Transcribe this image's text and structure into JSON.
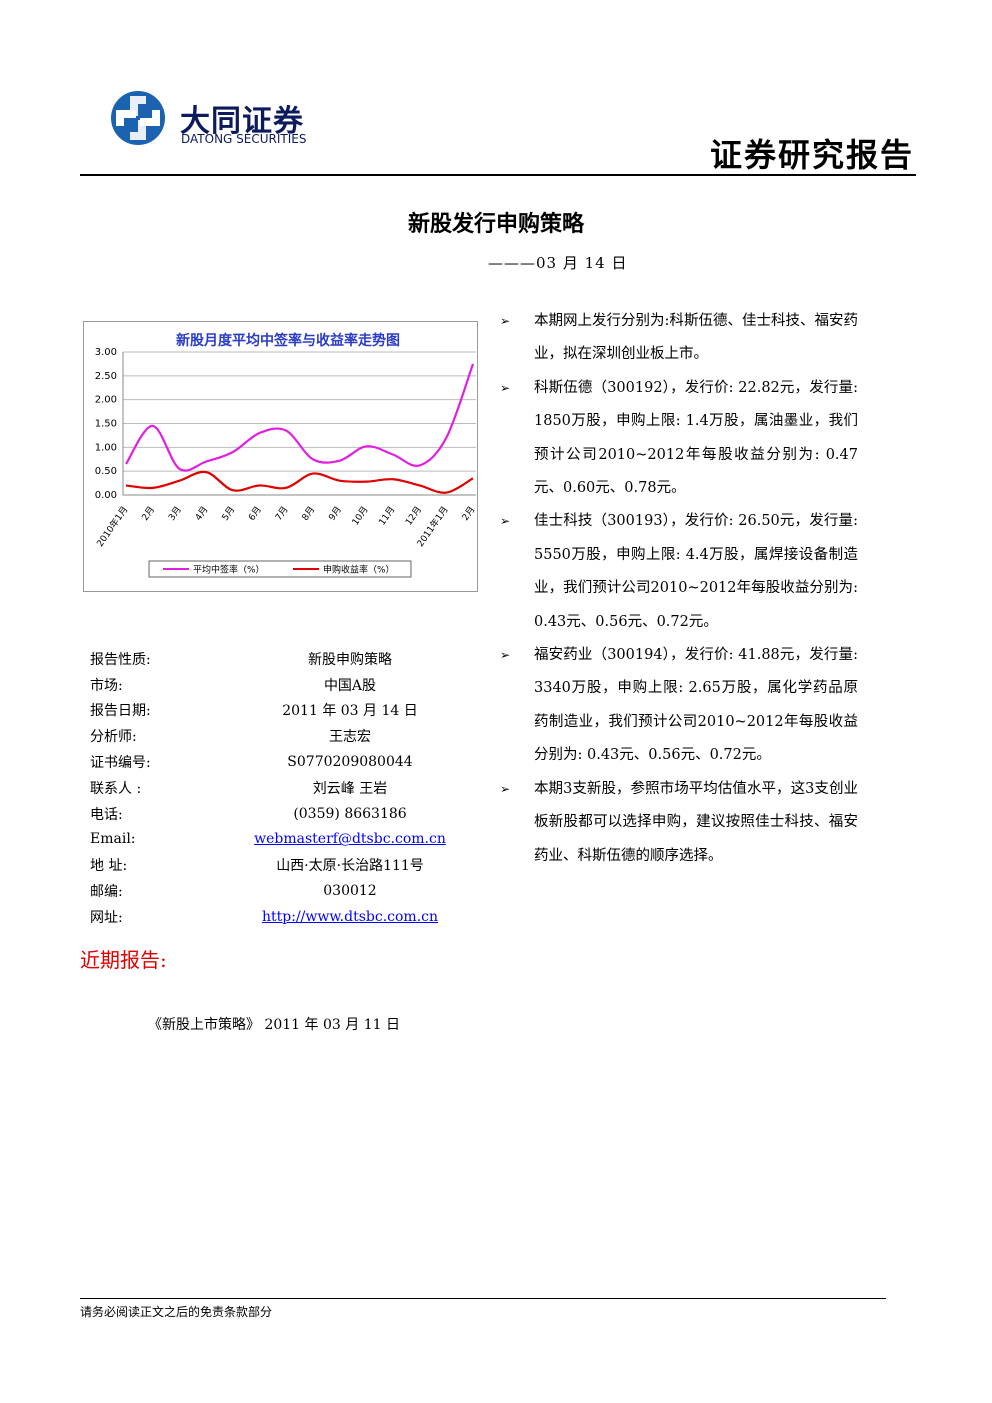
{
  "header": {
    "brand_cn": "大同证券",
    "brand_en": "DATONG SECURITIES",
    "report_type": "证券研究报告"
  },
  "title": "新股发行申购策略",
  "date_line": "———03 月 14 日",
  "chart_data": {
    "type": "line",
    "title": "新股月度平均中签率与收益率走势图",
    "categories": [
      "2010年1月",
      "2月",
      "3月",
      "4月",
      "5月",
      "6月",
      "7月",
      "8月",
      "9月",
      "10月",
      "11月",
      "12月",
      "2011年1月",
      "2月"
    ],
    "series": [
      {
        "name": "平均中签率（%）",
        "color": "#e020e0",
        "values": [
          0.65,
          1.45,
          0.55,
          0.7,
          0.9,
          1.3,
          1.35,
          0.75,
          0.72,
          1.02,
          0.85,
          0.62,
          1.2,
          2.75
        ]
      },
      {
        "name": "申购收益率（%）",
        "color": "#e00000",
        "values": [
          0.2,
          0.15,
          0.3,
          0.48,
          0.1,
          0.2,
          0.15,
          0.45,
          0.3,
          0.28,
          0.33,
          0.2,
          0.05,
          0.35
        ]
      }
    ],
    "ylim": [
      0,
      3
    ],
    "yticks": [
      {
        "value": 0,
        "label": "0.00"
      },
      {
        "value": 0.5,
        "label": "0.50"
      },
      {
        "value": 1,
        "label": "1.00"
      },
      {
        "value": 1.5,
        "label": "1.50"
      },
      {
        "value": 2,
        "label": "2.00"
      },
      {
        "value": 2.5,
        "label": "2.50"
      },
      {
        "value": 3,
        "label": "3.00"
      }
    ],
    "grid": true
  },
  "info": [
    {
      "label": "报告性质:",
      "value": "新股申购策略"
    },
    {
      "label": "市场:",
      "value": "中国A股"
    },
    {
      "label": "报告日期:",
      "value": "2011 年 03 月 14 日"
    },
    {
      "label": "分析师:",
      "value": "王志宏"
    },
    {
      "label": "证书编号:",
      "value": "S0770209080044"
    },
    {
      "label": "联系人 :",
      "value": "刘云峰    王岩"
    },
    {
      "label": "电话:",
      "value": "(0359) 8663186"
    },
    {
      "label": "Email:",
      "value": "webmasterf@dtsbc.com.cn"
    },
    {
      "label": "地  址:",
      "value": "山西·太原·长治路111号"
    },
    {
      "label": "邮编:",
      "value": "030012"
    },
    {
      "label": "网址:",
      "value": "http://www.dtsbc.com.cn"
    }
  ],
  "bullets": [
    "本期网上发行分别为:科斯伍德、佳士科技、福安药业，拟在深圳创业板上市。",
    "科斯伍德（300192），发行价: 22.82元，发行量: 1850万股，申购上限: 1.4万股，属油墨业，我们预计公司2010~2012年每股收益分别为: 0.47元、0.60元、0.78元。",
    "佳士科技（300193），发行价: 26.50元，发行量: 5550万股，申购上限: 4.4万股，属焊接设备制造业，我们预计公司2010~2012年每股收益分别为: 0.43元、0.56元、0.72元。",
    "福安药业（300194），发行价: 41.88元，发行量: 3340万股，申购上限: 2.65万股，属化学药品原药制造业，我们预计公司2010~2012年每股收益分别为: 0.43元、0.56元、0.72元。",
    "本期3支新股，参照市场平均估值水平，这3支创业板新股都可以选择申购，建议按照佳士科技、福安药业、科斯伍德的顺序选择。"
  ],
  "recent": {
    "heading": "近期报告:",
    "items": [
      "《新股上市策略》 2011 年 03 月 11 日"
    ]
  },
  "footer": "请务必阅读正文之后的免责条款部分"
}
